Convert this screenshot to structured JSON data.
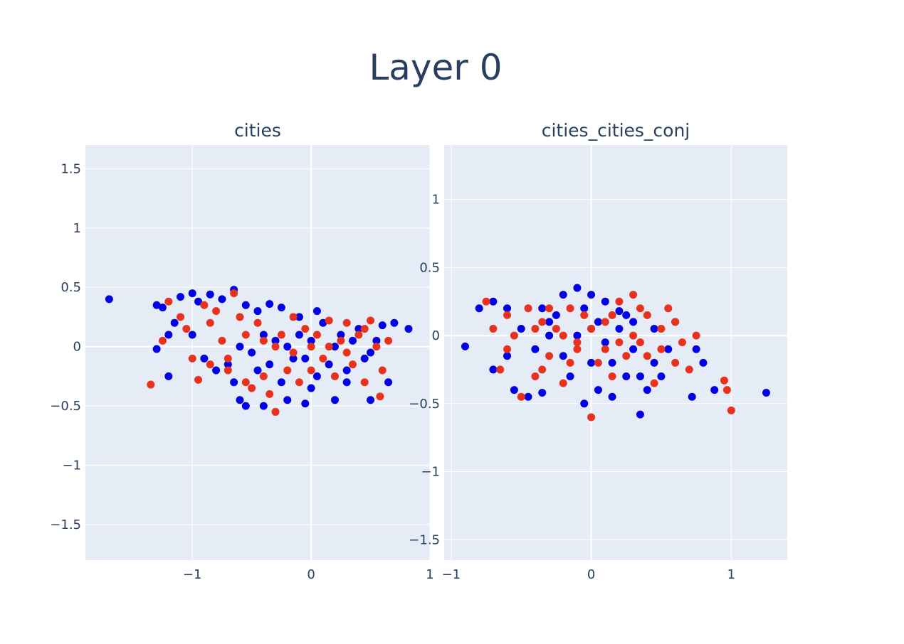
{
  "title": "Layer 0",
  "colors": {
    "plot_bg": "#e5ecf6",
    "grid": "#ffffff",
    "text": "#2a3f5f",
    "blue": "#0000e6",
    "red": "#e8321e"
  },
  "chart_data": [
    {
      "type": "scatter",
      "title": "cities",
      "xlabel": "",
      "ylabel": "",
      "xlim": [
        -1.9,
        1.0
      ],
      "ylim": [
        -1.8,
        1.7
      ],
      "x_ticks": [
        -1,
        0,
        1
      ],
      "x_tick_labels": [
        "−1",
        "0",
        "1"
      ],
      "y_ticks": [
        -1.5,
        -1,
        -0.5,
        0,
        0.5,
        1,
        1.5
      ],
      "y_tick_labels": [
        "−1.5",
        "−1",
        "−0.5",
        "0",
        "0.5",
        "1",
        "1.5"
      ],
      "grid": true,
      "legend": "none",
      "series": [
        {
          "color": "#0000e6",
          "points": [
            [
              -1.7,
              0.4
            ],
            [
              -1.3,
              0.35
            ],
            [
              -1.25,
              0.33
            ],
            [
              -1.1,
              0.42
            ],
            [
              -1.0,
              0.45
            ],
            [
              -0.95,
              0.38
            ],
            [
              -0.85,
              0.44
            ],
            [
              -0.75,
              0.4
            ],
            [
              -0.65,
              0.48
            ],
            [
              -0.55,
              0.35
            ],
            [
              -0.45,
              0.3
            ],
            [
              -0.35,
              0.36
            ],
            [
              -0.25,
              0.33
            ],
            [
              -1.3,
              -0.02
            ],
            [
              -1.2,
              0.1
            ],
            [
              -1.15,
              0.2
            ],
            [
              -1.2,
              -0.25
            ],
            [
              -0.8,
              -0.2
            ],
            [
              -0.7,
              -0.15
            ],
            [
              -0.6,
              -0.45
            ],
            [
              -0.55,
              -0.5
            ],
            [
              -0.4,
              -0.5
            ],
            [
              -0.2,
              -0.45
            ],
            [
              -0.05,
              -0.48
            ],
            [
              0.2,
              -0.45
            ],
            [
              0.5,
              -0.45
            ],
            [
              0.65,
              -0.3
            ],
            [
              0.7,
              0.2
            ],
            [
              0.82,
              0.15
            ],
            [
              0.6,
              0.18
            ],
            [
              0.55,
              0.05
            ],
            [
              0.45,
              -0.1
            ],
            [
              0.3,
              -0.2
            ],
            [
              0.25,
              0.1
            ],
            [
              0.1,
              0.2
            ],
            [
              0.0,
              0.05
            ],
            [
              -0.1,
              0.1
            ],
            [
              -0.15,
              -0.1
            ],
            [
              -0.2,
              0.0
            ],
            [
              -0.3,
              0.05
            ],
            [
              -0.35,
              -0.15
            ],
            [
              -0.4,
              0.1
            ],
            [
              -0.45,
              -0.2
            ],
            [
              -0.5,
              -0.05
            ],
            [
              0.05,
              -0.25
            ],
            [
              0.15,
              -0.15
            ],
            [
              0.35,
              0.05
            ],
            [
              0.4,
              0.15
            ],
            [
              0.5,
              -0.05
            ],
            [
              -0.05,
              -0.1
            ],
            [
              0.2,
              0.0
            ],
            [
              -0.25,
              -0.3
            ],
            [
              -0.1,
              0.25
            ],
            [
              0.05,
              0.3
            ],
            [
              -0.6,
              0.0
            ],
            [
              -0.65,
              -0.3
            ],
            [
              -0.9,
              -0.1
            ],
            [
              -1.0,
              0.1
            ],
            [
              0.3,
              -0.3
            ],
            [
              0.0,
              -0.35
            ]
          ]
        },
        {
          "color": "#e8321e",
          "points": [
            [
              -1.35,
              -0.32
            ],
            [
              -1.25,
              0.05
            ],
            [
              -1.2,
              0.38
            ],
            [
              -1.1,
              0.25
            ],
            [
              -1.05,
              0.15
            ],
            [
              -1.0,
              -0.1
            ],
            [
              -0.95,
              -0.28
            ],
            [
              -0.9,
              0.35
            ],
            [
              -0.85,
              0.2
            ],
            [
              -0.8,
              0.3
            ],
            [
              -0.75,
              0.05
            ],
            [
              -0.7,
              -0.1
            ],
            [
              -0.65,
              0.45
            ],
            [
              -0.6,
              0.25
            ],
            [
              -0.55,
              -0.3
            ],
            [
              -0.5,
              -0.35
            ],
            [
              -0.45,
              0.2
            ],
            [
              -0.4,
              -0.25
            ],
            [
              -0.35,
              -0.4
            ],
            [
              -0.3,
              -0.55
            ],
            [
              -0.25,
              0.1
            ],
            [
              -0.2,
              -0.2
            ],
            [
              -0.15,
              0.25
            ],
            [
              -0.1,
              -0.3
            ],
            [
              -0.05,
              0.15
            ],
            [
              0.0,
              -0.2
            ],
            [
              0.05,
              0.1
            ],
            [
              0.1,
              -0.1
            ],
            [
              0.15,
              0.22
            ],
            [
              0.2,
              -0.25
            ],
            [
              0.25,
              0.05
            ],
            [
              0.3,
              0.2
            ],
            [
              0.35,
              -0.15
            ],
            [
              0.4,
              0.1
            ],
            [
              0.45,
              -0.3
            ],
            [
              0.5,
              0.22
            ],
            [
              0.55,
              0.0
            ],
            [
              0.6,
              -0.2
            ],
            [
              0.65,
              0.05
            ],
            [
              0.58,
              -0.42
            ],
            [
              -0.85,
              -0.15
            ],
            [
              -0.7,
              -0.2
            ],
            [
              -0.55,
              0.1
            ],
            [
              -0.3,
              0.0
            ],
            [
              0.0,
              0.0
            ],
            [
              0.3,
              -0.05
            ],
            [
              -0.15,
              -0.05
            ],
            [
              0.15,
              0.0
            ],
            [
              0.45,
              0.15
            ],
            [
              -0.4,
              0.05
            ]
          ]
        }
      ]
    },
    {
      "type": "scatter",
      "title": "cities_cities_conj",
      "xlabel": "",
      "ylabel": "",
      "xlim": [
        -1.05,
        1.4
      ],
      "ylim": [
        -1.65,
        1.4
      ],
      "x_ticks": [
        -1,
        0,
        1
      ],
      "x_tick_labels": [
        "−1",
        "0",
        "1"
      ],
      "y_ticks": [
        -1.5,
        -1,
        -0.5,
        0,
        0.5,
        1
      ],
      "y_tick_labels": [
        "−1.5",
        "−1",
        "−0.5",
        "0",
        "0.5",
        "1"
      ],
      "grid": true,
      "legend": "none",
      "series": [
        {
          "color": "#0000e6",
          "points": [
            [
              -0.9,
              -0.08
            ],
            [
              -0.8,
              0.2
            ],
            [
              -0.7,
              0.25
            ],
            [
              -0.6,
              0.2
            ],
            [
              -0.55,
              -0.4
            ],
            [
              -0.45,
              -0.45
            ],
            [
              -0.35,
              -0.42
            ],
            [
              -0.3,
              0.1
            ],
            [
              -0.2,
              0.3
            ],
            [
              -0.1,
              0.35
            ],
            [
              -0.05,
              0.2
            ],
            [
              0.0,
              0.3
            ],
            [
              0.1,
              0.25
            ],
            [
              0.2,
              0.18
            ],
            [
              0.3,
              0.1
            ],
            [
              0.35,
              -0.3
            ],
            [
              0.4,
              -0.4
            ],
            [
              0.45,
              -0.2
            ],
            [
              0.55,
              -0.1
            ],
            [
              0.6,
              0.1
            ],
            [
              0.75,
              -0.1
            ],
            [
              0.8,
              -0.2
            ],
            [
              0.72,
              -0.45
            ],
            [
              0.88,
              -0.4
            ],
            [
              1.25,
              -0.42
            ],
            [
              -0.05,
              -0.5
            ],
            [
              0.05,
              -0.4
            ],
            [
              0.15,
              -0.45
            ],
            [
              0.25,
              -0.3
            ],
            [
              0.35,
              -0.58
            ],
            [
              -0.4,
              -0.1
            ],
            [
              -0.3,
              0.0
            ],
            [
              -0.2,
              -0.15
            ],
            [
              -0.1,
              0.0
            ],
            [
              0.0,
              -0.2
            ],
            [
              0.1,
              -0.05
            ],
            [
              0.2,
              0.05
            ],
            [
              0.3,
              -0.1
            ],
            [
              -0.5,
              0.05
            ],
            [
              -0.6,
              -0.15
            ],
            [
              -0.25,
              0.15
            ],
            [
              0.05,
              0.1
            ],
            [
              -0.15,
              -0.3
            ],
            [
              0.15,
              -0.2
            ],
            [
              0.25,
              0.15
            ],
            [
              -0.35,
              0.2
            ],
            [
              0.45,
              0.05
            ],
            [
              -0.7,
              -0.25
            ],
            [
              0.5,
              -0.3
            ],
            [
              0.0,
              0.05
            ]
          ]
        },
        {
          "color": "#e8321e",
          "points": [
            [
              -0.75,
              0.25
            ],
            [
              -0.7,
              0.05
            ],
            [
              -0.65,
              -0.25
            ],
            [
              -0.6,
              0.15
            ],
            [
              -0.5,
              -0.45
            ],
            [
              -0.45,
              0.2
            ],
            [
              -0.4,
              -0.3
            ],
            [
              -0.35,
              0.1
            ],
            [
              -0.3,
              -0.15
            ],
            [
              -0.25,
              0.05
            ],
            [
              -0.2,
              -0.35
            ],
            [
              -0.15,
              0.2
            ],
            [
              -0.1,
              -0.1
            ],
            [
              -0.05,
              0.15
            ],
            [
              0.0,
              -0.6
            ],
            [
              0.05,
              -0.2
            ],
            [
              0.1,
              0.1
            ],
            [
              0.15,
              -0.3
            ],
            [
              0.2,
              0.25
            ],
            [
              0.25,
              -0.15
            ],
            [
              0.3,
              0.3
            ],
            [
              0.35,
              -0.05
            ],
            [
              0.4,
              0.15
            ],
            [
              0.45,
              -0.35
            ],
            [
              0.5,
              0.05
            ],
            [
              0.55,
              0.2
            ],
            [
              0.6,
              -0.2
            ],
            [
              0.65,
              -0.05
            ],
            [
              0.7,
              -0.25
            ],
            [
              0.75,
              0.0
            ],
            [
              0.95,
              -0.33
            ],
            [
              0.97,
              -0.4
            ],
            [
              1.0,
              -0.55
            ],
            [
              -0.55,
              0.0
            ],
            [
              -0.3,
              0.2
            ],
            [
              -0.1,
              -0.05
            ],
            [
              0.1,
              -0.1
            ],
            [
              0.3,
              0.0
            ],
            [
              0.5,
              -0.1
            ],
            [
              -0.2,
              0.0
            ],
            [
              0.0,
              0.05
            ],
            [
              0.2,
              -0.05
            ],
            [
              -0.4,
              0.05
            ],
            [
              0.4,
              -0.15
            ],
            [
              -0.6,
              -0.1
            ],
            [
              0.6,
              0.1
            ],
            [
              -0.15,
              -0.2
            ],
            [
              0.15,
              0.15
            ],
            [
              0.35,
              0.2
            ],
            [
              -0.35,
              -0.25
            ]
          ]
        }
      ]
    }
  ]
}
